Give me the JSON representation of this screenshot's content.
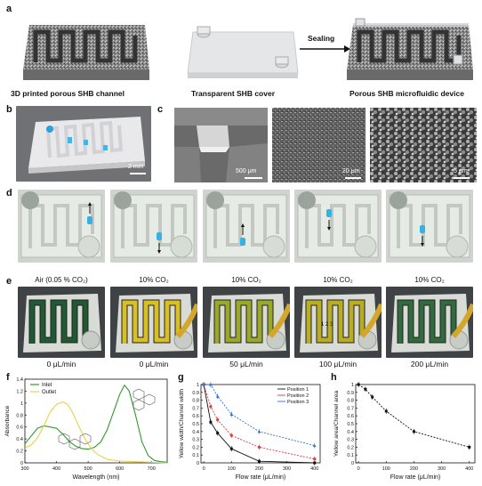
{
  "panel_labels": {
    "a": "a",
    "b": "b",
    "c": "c",
    "d": "d",
    "e": "e",
    "f": "f",
    "g": "g",
    "h": "h"
  },
  "panel_a": {
    "caption_left": "3D printed porous SHB channel",
    "caption_middle": "Transparent SHB cover",
    "caption_right": "Porous SHB microfluidic device",
    "arrow_label": "Sealing"
  },
  "panel_b": {
    "scale": "2 mm"
  },
  "panel_c": {
    "scales": [
      "500 μm",
      "20 μm",
      "5 μm"
    ]
  },
  "panel_e": {
    "conditions": [
      "Air (0.05 % CO₂)",
      "10% CO₂",
      "10% CO₂",
      "10% CO₂",
      "10% CO₂"
    ],
    "flow_rates": [
      "0 μL/min",
      "0 μL/min",
      "50 μL/min",
      "100 μL/min",
      "200 μL/min"
    ],
    "position_marks": "1 2 3"
  },
  "colors": {
    "inlet": "#2e9a2e",
    "outlet": "#e8d24a",
    "pos1": "#111111",
    "pos2": "#e03a3a",
    "pos3": "#2a72c9"
  },
  "chart_data": [
    {
      "type": "line",
      "panel": "f",
      "xlabel": "Wavelength (nm)",
      "ylabel": "Absorbance",
      "xlim": [
        300,
        750
      ],
      "ylim": [
        0,
        1.4
      ],
      "xticks": [
        300,
        400,
        500,
        600,
        700
      ],
      "yticks": [
        0,
        0.2,
        0.4,
        0.6,
        0.8,
        1,
        1.2,
        1.4
      ],
      "series": [
        {
          "name": "Inlet",
          "x": [
            300,
            320,
            340,
            360,
            380,
            400,
            420,
            440,
            460,
            480,
            500,
            520,
            540,
            560,
            580,
            600,
            615,
            630,
            650,
            670,
            690,
            710,
            730,
            750
          ],
          "y": [
            0.32,
            0.45,
            0.58,
            0.62,
            0.6,
            0.58,
            0.48,
            0.36,
            0.28,
            0.24,
            0.23,
            0.26,
            0.35,
            0.55,
            0.85,
            1.15,
            1.3,
            1.2,
            0.8,
            0.35,
            0.12,
            0.04,
            0.02,
            0.01
          ]
        },
        {
          "name": "Outlet",
          "x": [
            300,
            320,
            340,
            360,
            380,
            400,
            420,
            435,
            450,
            470,
            490,
            510,
            530,
            560,
            600,
            650,
            700,
            750
          ],
          "y": [
            0.25,
            0.3,
            0.42,
            0.62,
            0.85,
            0.98,
            1.02,
            0.98,
            0.85,
            0.62,
            0.4,
            0.24,
            0.14,
            0.06,
            0.03,
            0.02,
            0.01,
            0.0
          ]
        }
      ]
    },
    {
      "type": "line",
      "panel": "g",
      "xlabel": "Flow rate (μL/min)",
      "ylabel": "Yellow width/Channel width",
      "xlim": [
        -10,
        420
      ],
      "ylim": [
        0,
        1
      ],
      "xticks": [
        0,
        100,
        200,
        300,
        400
      ],
      "yticks": [
        0,
        0.1,
        0.2,
        0.3,
        0.4,
        0.5,
        0.6,
        0.7,
        0.8,
        0.9,
        1
      ],
      "series": [
        {
          "name": "Position 1",
          "x": [
            0,
            25,
            50,
            100,
            200,
            400
          ],
          "y": [
            1.0,
            0.52,
            0.38,
            0.18,
            0.02,
            0.0
          ]
        },
        {
          "name": "Position 2",
          "x": [
            0,
            25,
            50,
            100,
            200,
            400
          ],
          "y": [
            1.0,
            0.72,
            0.55,
            0.35,
            0.2,
            0.05
          ]
        },
        {
          "name": "Position 3",
          "x": [
            0,
            25,
            50,
            100,
            200,
            400
          ],
          "y": [
            1.0,
            1.0,
            0.85,
            0.62,
            0.4,
            0.22
          ]
        }
      ]
    },
    {
      "type": "line",
      "panel": "h",
      "xlabel": "Flow rate (μL/min)",
      "ylabel": "Yellow area/Channel area",
      "xlim": [
        -10,
        420
      ],
      "ylim": [
        0,
        1
      ],
      "xticks": [
        0,
        100,
        200,
        300,
        400
      ],
      "yticks": [
        0,
        0.1,
        0.2,
        0.3,
        0.4,
        0.5,
        0.6,
        0.7,
        0.8,
        0.9,
        1
      ],
      "series": [
        {
          "x": [
            0,
            25,
            50,
            100,
            200,
            400
          ],
          "y": [
            1.0,
            0.94,
            0.84,
            0.66,
            0.4,
            0.2
          ]
        }
      ]
    }
  ]
}
